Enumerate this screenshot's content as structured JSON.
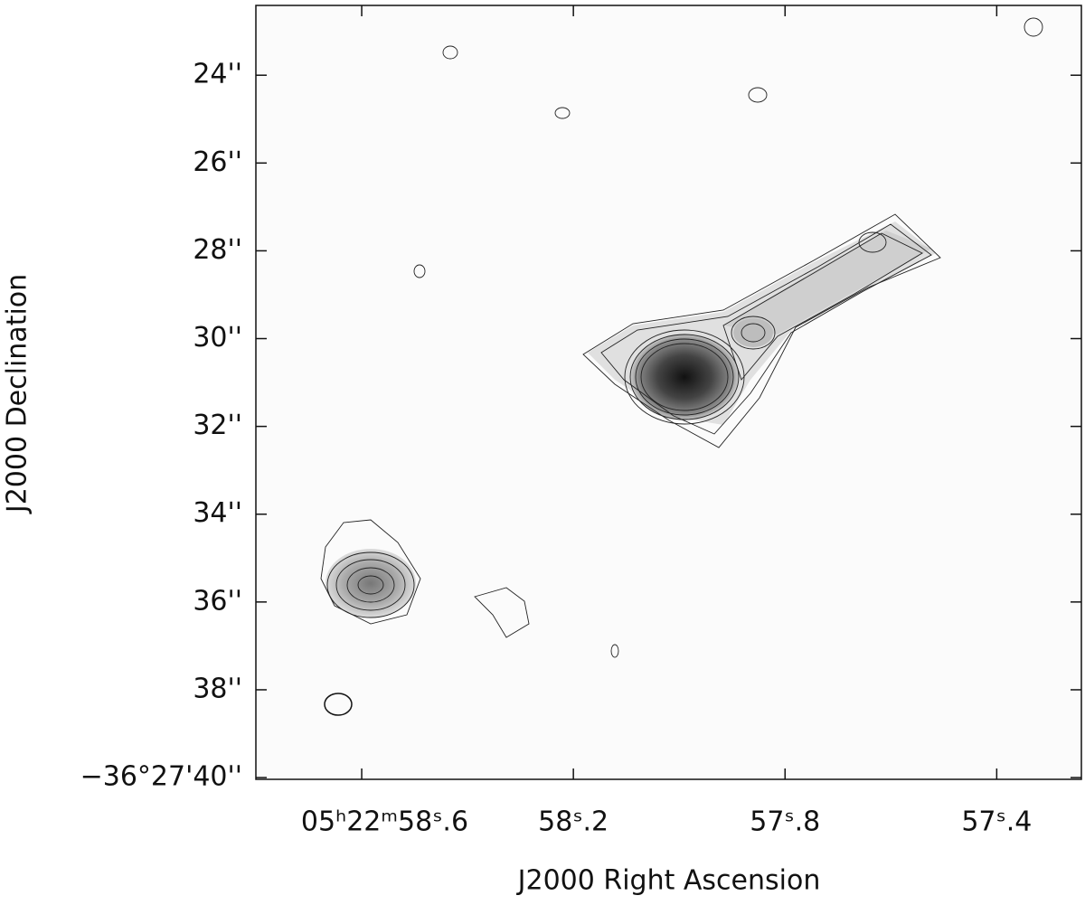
{
  "chart_data": {
    "type": "contour",
    "xlabel": "J2000 Right Ascension",
    "ylabel": "J2000 Declination",
    "xlim": [
      58.8,
      57.24
    ],
    "ylim": [
      40.04,
      22.41
    ],
    "xticks": [
      {
        "value": 58.6,
        "label": "05ʰ22ᵐ58ˢ.6"
      },
      {
        "value": 58.2,
        "label": "58ˢ.2"
      },
      {
        "value": 57.8,
        "label": "57ˢ.8"
      },
      {
        "value": 57.4,
        "label": "57ˢ.4"
      }
    ],
    "yticks": [
      {
        "value": 24,
        "label": "24''"
      },
      {
        "value": 26,
        "label": "26''"
      },
      {
        "value": 28,
        "label": "28''"
      },
      {
        "value": 30,
        "label": "30''"
      },
      {
        "value": 32,
        "label": "32''"
      },
      {
        "value": 34,
        "label": "34''"
      },
      {
        "value": 36,
        "label": "36''"
      },
      {
        "value": 38,
        "label": "38''"
      },
      {
        "value": 40,
        "label": "−36°27'40''"
      }
    ]
  }
}
